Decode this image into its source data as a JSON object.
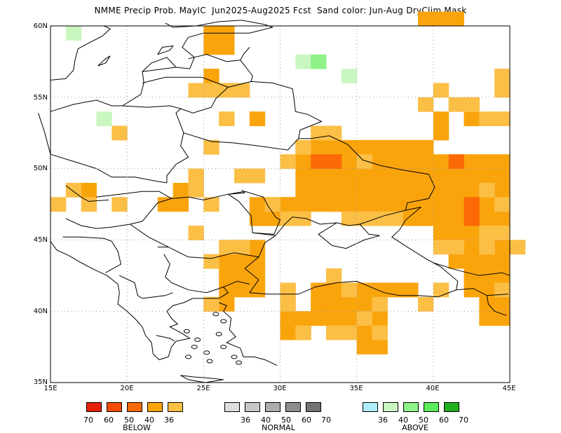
{
  "title": "NMME Precip Prob. MayIC  Jun2025-Aug2025 Fcst  Sand color: Jun-Aug DryClim Mask",
  "map": {
    "lon_range": [
      15,
      45
    ],
    "lat_range": [
      35,
      60
    ],
    "lat_ticks": [
      "60N",
      "55N",
      "50N",
      "45N",
      "40N",
      "35N"
    ],
    "lon_ticks": [
      "15E",
      "20E",
      "25E",
      "30E",
      "35E",
      "40E",
      "45E"
    ],
    "grid": "dotted"
  },
  "colors": {
    "below_36": "#fbbf46",
    "below_40": "#faa40c",
    "below_50": "#fb6a07",
    "below_60": "#f54d07",
    "below_70": "#e8210c",
    "normal_36": "#dedede",
    "normal_40": "#c6c6c6",
    "normal_50": "#adadad",
    "normal_60": "#8e8e8e",
    "normal_70": "#737373",
    "above_36": "#aeeef8",
    "above_40": "#caf7c0",
    "above_50": "#8ef288",
    "above_60": "#5bec5b",
    "above_70": "#20b020",
    "coast": "#000000"
  },
  "legend": {
    "below": {
      "label": "BELOW",
      "numbers": [
        "70",
        "60",
        "50",
        "40",
        "36"
      ]
    },
    "normal": {
      "label": "NORMAL",
      "numbers": [
        "36",
        "40",
        "50",
        "60",
        "70"
      ]
    },
    "above": {
      "label": "ABOVE",
      "numbers": [
        "36",
        "40",
        "50",
        "60",
        "70"
      ]
    }
  }
}
